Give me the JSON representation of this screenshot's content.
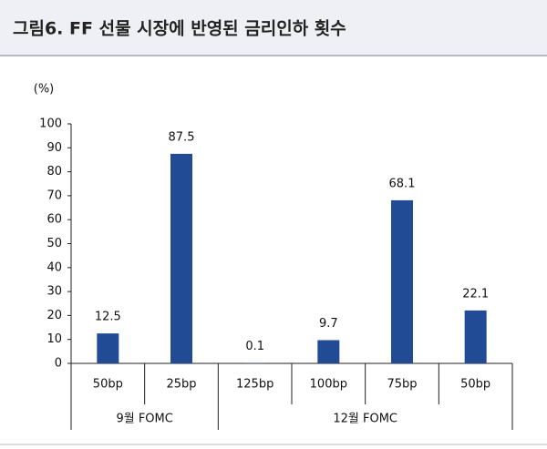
{
  "chart_data": {
    "type": "bar",
    "title": "그림6. FF 선물 시장에 반영된 금리인하 횟수",
    "y_label": "(%)",
    "groups": [
      {
        "name": "9월 FOMC",
        "categories": [
          "50bp",
          "25bp"
        ],
        "values": [
          12.5,
          87.5
        ]
      },
      {
        "name": "12월 FOMC",
        "categories": [
          "125bp",
          "100bp",
          "75bp",
          "50bp"
        ],
        "values": [
          0.1,
          9.7,
          68.1,
          22.1
        ]
      }
    ],
    "color": "#214b94",
    "ylim": [
      0,
      100
    ],
    "yticks": [
      0,
      10,
      20,
      30,
      40,
      50,
      60,
      70,
      80,
      90,
      100
    ],
    "grid": false
  }
}
